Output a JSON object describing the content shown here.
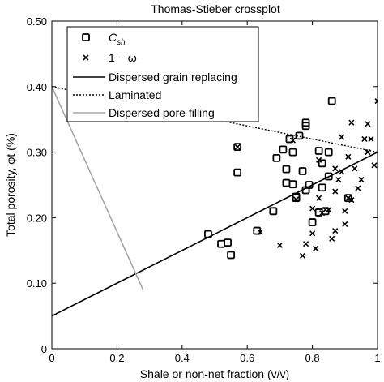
{
  "chart_data": {
    "type": "scatter",
    "title": "Thomas-Stieber crossplot",
    "xlabel": "Shale or non-net fraction (v/v)",
    "ylabel": "Total porosity, φt (%)",
    "xlim": [
      0,
      1
    ],
    "ylim": [
      0,
      0.5
    ],
    "x_ticks": [
      "0",
      "0.2",
      "0.4",
      "0.6",
      "0.8",
      "1"
    ],
    "y_ticks": [
      "0",
      "0.10",
      "0.20",
      "0.30",
      "0.40",
      "0.50"
    ],
    "x_tick_values": [
      0,
      0.2,
      0.4,
      0.6,
      0.8,
      1
    ],
    "y_tick_values": [
      0,
      0.1,
      0.2,
      0.3,
      0.4,
      0.5
    ],
    "grid": false,
    "legend_position": "top-left",
    "series": [
      {
        "name": "C_sh",
        "marker": "square",
        "color": "#000000",
        "points": [
          [
            0.48,
            0.175
          ],
          [
            0.52,
            0.16
          ],
          [
            0.54,
            0.162
          ],
          [
            0.55,
            0.143
          ],
          [
            0.57,
            0.308
          ],
          [
            0.57,
            0.269
          ],
          [
            0.63,
            0.18
          ],
          [
            0.68,
            0.21
          ],
          [
            0.69,
            0.291
          ],
          [
            0.71,
            0.304
          ],
          [
            0.72,
            0.274
          ],
          [
            0.72,
            0.253
          ],
          [
            0.73,
            0.32
          ],
          [
            0.74,
            0.3
          ],
          [
            0.74,
            0.251
          ],
          [
            0.75,
            0.23
          ],
          [
            0.75,
            0.232
          ],
          [
            0.76,
            0.325
          ],
          [
            0.77,
            0.271
          ],
          [
            0.78,
            0.345
          ],
          [
            0.78,
            0.34
          ],
          [
            0.78,
            0.242
          ],
          [
            0.79,
            0.25
          ],
          [
            0.8,
            0.193
          ],
          [
            0.82,
            0.208
          ],
          [
            0.82,
            0.302
          ],
          [
            0.83,
            0.246
          ],
          [
            0.83,
            0.283
          ],
          [
            0.84,
            0.21
          ],
          [
            0.85,
            0.263
          ],
          [
            0.85,
            0.3
          ],
          [
            0.86,
            0.378
          ],
          [
            0.91,
            0.23
          ]
        ]
      },
      {
        "name": "1 − ω",
        "marker": "x",
        "color": "#000000",
        "points": [
          [
            0.57,
            0.308
          ],
          [
            0.64,
            0.178
          ],
          [
            0.7,
            0.158
          ],
          [
            0.74,
            0.318
          ],
          [
            0.75,
            0.228
          ],
          [
            0.77,
            0.142
          ],
          [
            0.78,
            0.16
          ],
          [
            0.8,
            0.176
          ],
          [
            0.8,
            0.214
          ],
          [
            0.81,
            0.153
          ],
          [
            0.82,
            0.23
          ],
          [
            0.82,
            0.288
          ],
          [
            0.83,
            0.207
          ],
          [
            0.84,
            0.212
          ],
          [
            0.85,
            0.212
          ],
          [
            0.86,
            0.168
          ],
          [
            0.87,
            0.18
          ],
          [
            0.87,
            0.24
          ],
          [
            0.87,
            0.275
          ],
          [
            0.88,
            0.258
          ],
          [
            0.89,
            0.27
          ],
          [
            0.89,
            0.323
          ],
          [
            0.9,
            0.19
          ],
          [
            0.9,
            0.21
          ],
          [
            0.91,
            0.23
          ],
          [
            0.91,
            0.293
          ],
          [
            0.92,
            0.345
          ],
          [
            0.92,
            0.227
          ],
          [
            0.93,
            0.275
          ],
          [
            0.94,
            0.245
          ],
          [
            0.95,
            0.258
          ],
          [
            0.96,
            0.32
          ],
          [
            0.97,
            0.3
          ],
          [
            0.97,
            0.343
          ],
          [
            0.98,
            0.32
          ],
          [
            0.99,
            0.28
          ],
          [
            1.0,
            0.378
          ]
        ]
      }
    ],
    "lines": [
      {
        "name": "Dispersed grain replacing",
        "style": "solid",
        "color": "#000000",
        "x": [
          0,
          1
        ],
        "y": [
          0.05,
          0.3
        ]
      },
      {
        "name": "Laminated",
        "style": "dotted",
        "color": "#000000",
        "x": [
          0,
          1
        ],
        "y": [
          0.4,
          0.3
        ]
      },
      {
        "name": "Dispersed pore filling",
        "style": "solid",
        "color": "#a6a6a6",
        "x": [
          0,
          0.28
        ],
        "y": [
          0.4,
          0.09
        ]
      }
    ],
    "legend": [
      {
        "label": "C",
        "subscript": "sh",
        "kind": "square"
      },
      {
        "label": "1 − ω",
        "kind": "x"
      },
      {
        "label": "Dispersed grain replacing",
        "kind": "solid-black"
      },
      {
        "label": "Laminated",
        "kind": "dotted-black"
      },
      {
        "label": "Dispersed pore filling",
        "kind": "solid-gray"
      }
    ]
  }
}
